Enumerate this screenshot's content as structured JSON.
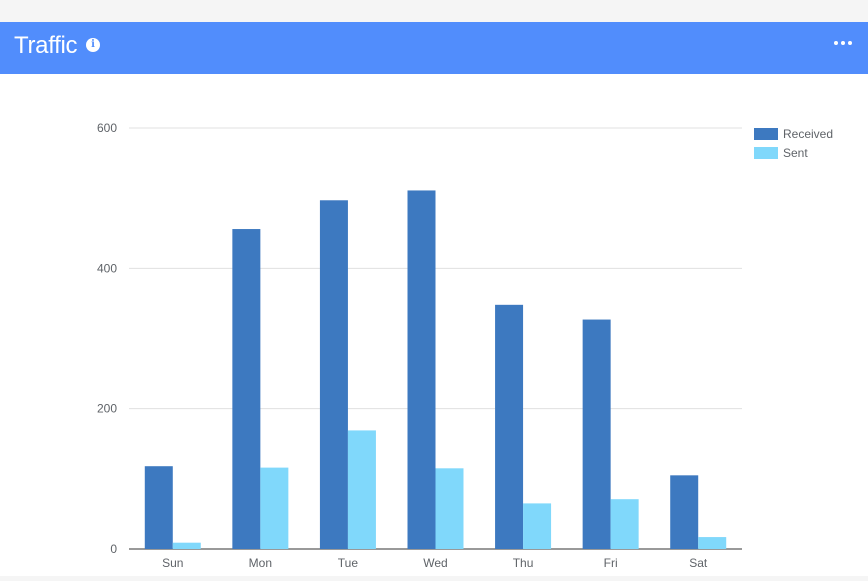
{
  "card": {
    "title": "Traffic",
    "info_glyph": "i",
    "info_icon": "info-icon",
    "menu_icon": "more-horizontal-icon"
  },
  "colors": {
    "header_bg": "#518dfc",
    "received": "#3d79c0",
    "sent": "#80d8fb",
    "grid": "#e0e0e0",
    "axis_text": "#5f6368"
  },
  "chart_data": {
    "type": "bar",
    "categories": [
      "Sun",
      "Mon",
      "Tue",
      "Wed",
      "Thu",
      "Fri",
      "Sat"
    ],
    "series": [
      {
        "name": "Received",
        "values": [
          118,
          456,
          497,
          511,
          348,
          327,
          105
        ]
      },
      {
        "name": "Sent",
        "values": [
          9,
          116,
          169,
          115,
          65,
          71,
          17
        ]
      }
    ],
    "yticks": [
      0,
      200,
      400,
      600
    ],
    "ylim": [
      0,
      600
    ],
    "grid": true,
    "legend": "top-right"
  }
}
